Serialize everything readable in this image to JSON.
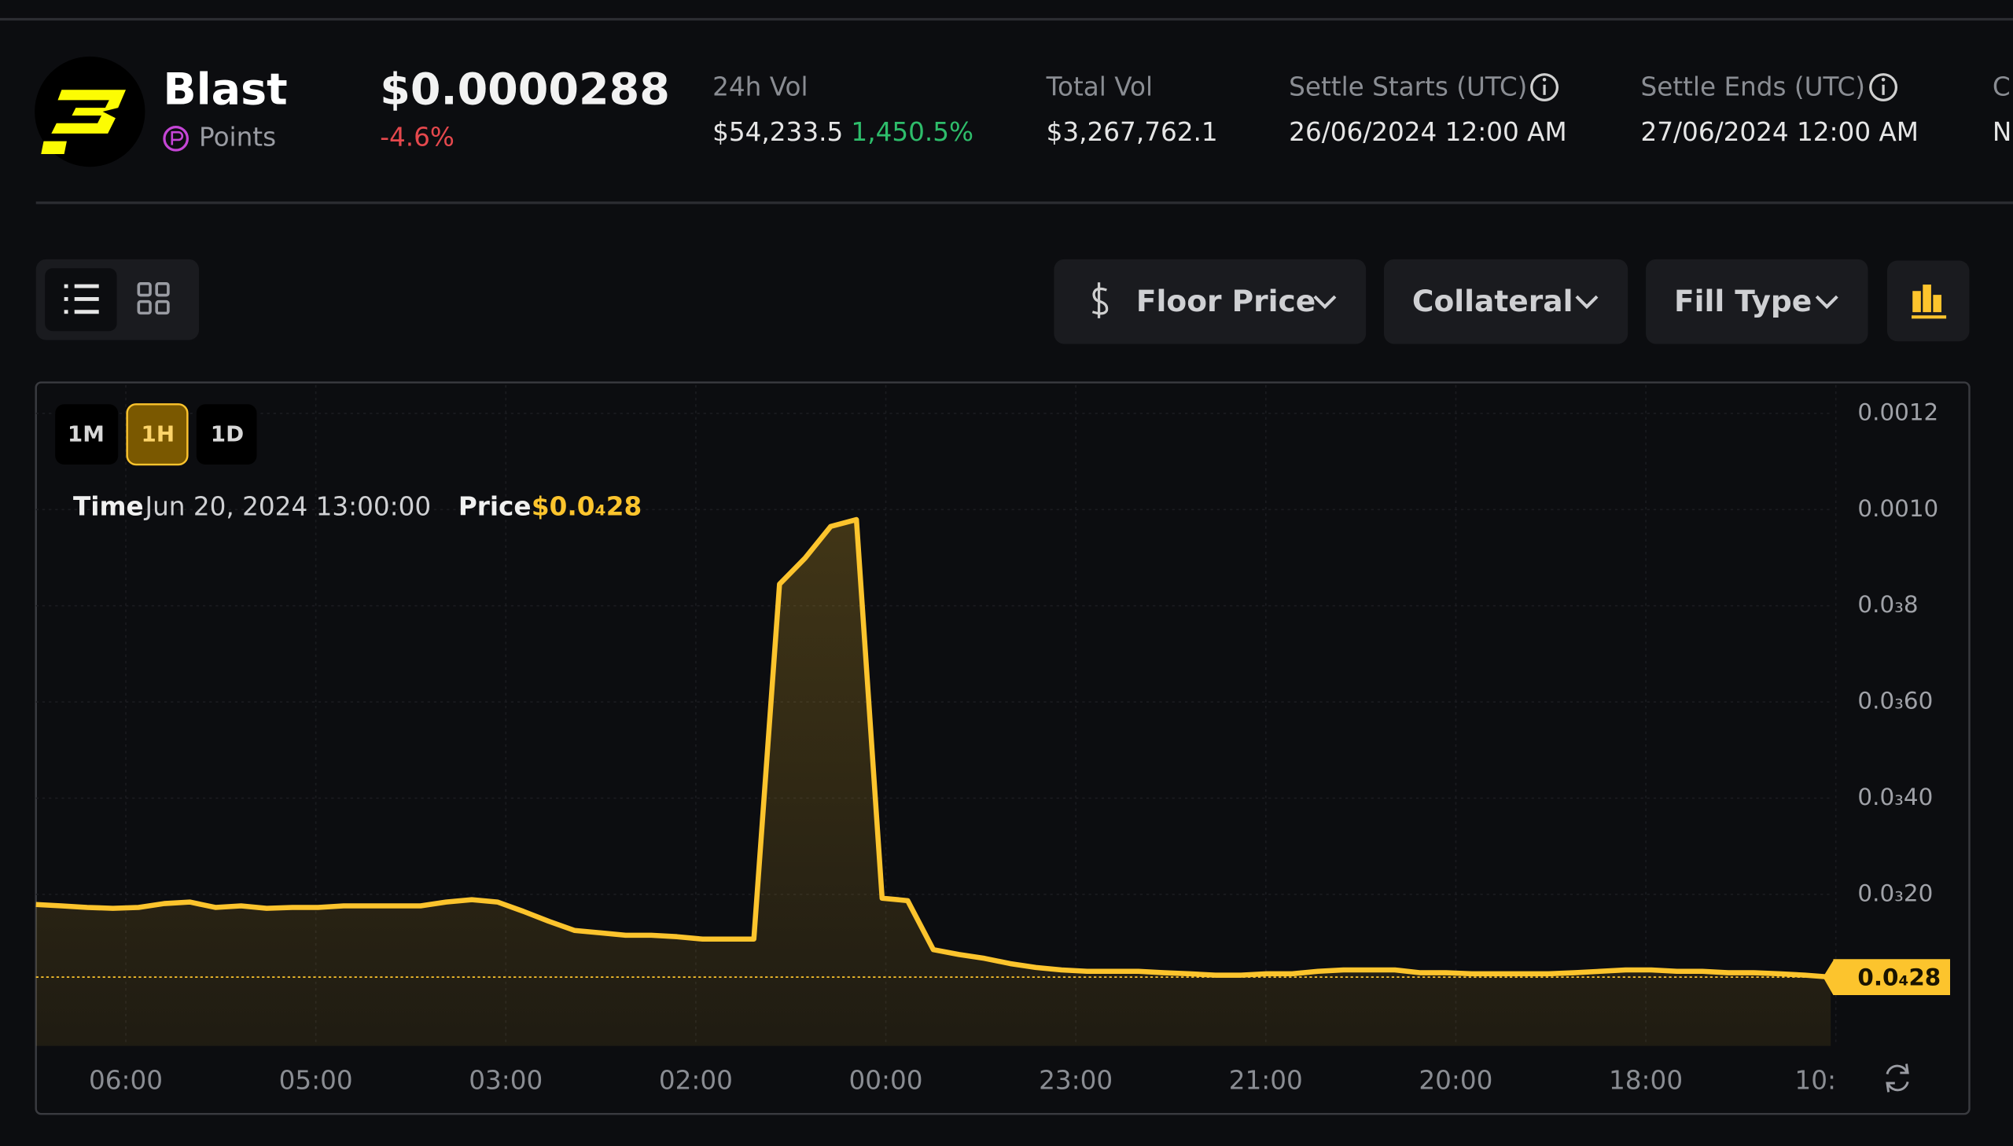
{
  "header": {
    "name": "Blast",
    "tag": "Points",
    "price": "$0.0000288",
    "change": "-4.6%"
  },
  "stats": [
    {
      "label": "24h Vol",
      "value": "$54,233.5",
      "extra": "1,450.5%"
    },
    {
      "label": "Total Vol",
      "value": "$3,267,762.1"
    },
    {
      "label": "Settle Starts (UTC)",
      "value": "26/06/2024 12:00 AM"
    },
    {
      "label": "Settle Ends (UTC)",
      "value": "27/06/2024 12:00 AM"
    },
    {
      "label": "C",
      "value": "N"
    }
  ],
  "filters": [
    "Floor Price",
    "Collateral",
    "Fill Type"
  ],
  "chart_data": {
    "type": "area",
    "color": "#fcc42d",
    "grid": true,
    "time_buttons": [
      "1M",
      "1H",
      "1D"
    ],
    "active_range": 1,
    "tooltip": {
      "time_label": "Time",
      "time": "Jun 20, 2024 13:00:00",
      "price_label": "Price",
      "price": "$0.0₄28"
    },
    "x_axis_labels": [
      "06:00",
      "05:00",
      "03:00",
      "02:00",
      "00:00",
      "23:00",
      "21:00",
      "20:00",
      "18:00",
      "10:"
    ],
    "ylim": [
      -0.000115,
      0.001259
    ],
    "yticks": [
      {
        "value": 0.0002,
        "label": "0.0₃20"
      },
      {
        "value": 0.0004,
        "label": "0.0₃40"
      },
      {
        "value": 0.0006,
        "label": "0.0₃60"
      },
      {
        "value": 0.0008,
        "label": "0.0₃8"
      },
      {
        "value": 0.001,
        "label": "0.0010"
      },
      0.0012
    ],
    "values": [
      0.000179,
      0.000176,
      0.000173,
      0.000171,
      0.000173,
      0.000181,
      0.000184,
      0.000173,
      0.000176,
      0.000171,
      0.000173,
      0.000173,
      0.000176,
      0.000176,
      0.000176,
      0.000176,
      0.000184,
      0.000189,
      0.000184,
      0.000165,
      0.000144,
      0.000125,
      0.00012,
      0.000115,
      0.000115,
      0.000112,
      0.000107,
      0.000107,
      0.000107,
      0.000845,
      0.000899,
      0.000965,
      0.000979,
      0.000192,
      0.000187,
      8.5e-05,
      7.5e-05,
      6.7e-05,
      5.6e-05,
      4.8e-05,
      4.3e-05,
      4e-05,
      4e-05,
      4e-05,
      3.7e-05,
      3.5e-05,
      3.2e-05,
      3.2e-05,
      3.5e-05,
      3.5e-05,
      4e-05,
      4.3e-05,
      4.3e-05,
      4.3e-05,
      3.7e-05,
      3.7e-05,
      3.5e-05,
      3.5e-05,
      3.5e-05,
      3.5e-05,
      3.7e-05,
      4e-05,
      4.3e-05,
      4.3e-05,
      4e-05,
      4e-05,
      3.7e-05,
      3.7e-05,
      3.5e-05,
      3.2e-05,
      2.8e-05
    ],
    "current_price": 2.8e-05,
    "current_price_label": "0.0₄28"
  }
}
